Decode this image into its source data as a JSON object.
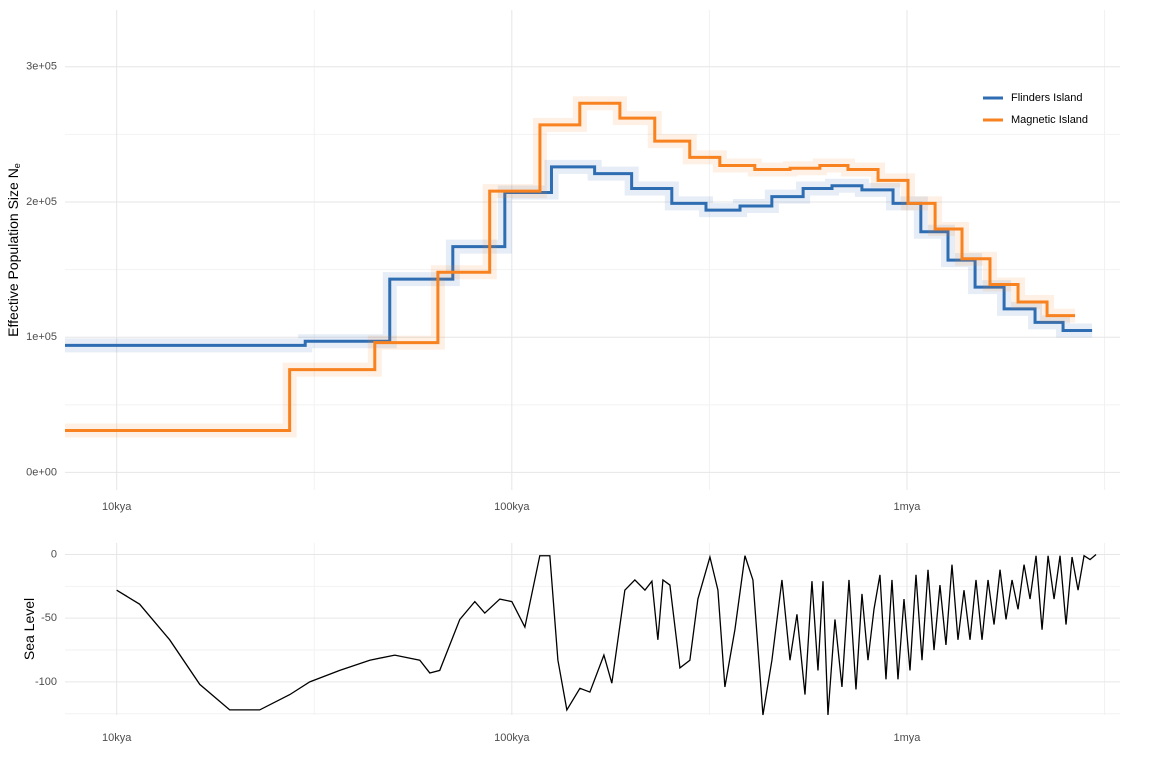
{
  "chart_data": [
    {
      "type": "step",
      "xscale": "log",
      "grid": true,
      "legend": "top-right",
      "y_label": "Effective Population Size N",
      "y_label_subscript": "e",
      "xlim": [
        7400,
        3460000
      ],
      "xticks": [
        {
          "value": 10000,
          "label": "10kya"
        },
        {
          "value": 100000,
          "label": "100kya"
        },
        {
          "value": 1000000,
          "label": "1mya"
        }
      ],
      "ylim": [
        -13000,
        342000
      ],
      "yticks": [
        {
          "value": 0,
          "label": "0e+00"
        },
        {
          "value": 100000,
          "label": "1e+05"
        },
        {
          "value": 200000,
          "label": "2e+05"
        },
        {
          "value": 300000,
          "label": "3e+05"
        }
      ],
      "series": [
        {
          "name": "Flinders Island",
          "color": "#2f6db3",
          "x": [
            7400,
            30000,
            49100,
            70900,
            96000,
            126000,
            162000,
            201000,
            254000,
            310000,
            378000,
            455000,
            546000,
            646000,
            769000,
            922000,
            1084000,
            1270000,
            1487000,
            1761000,
            2109000,
            2483000,
            2941000
          ],
          "values": [
            94000,
            97000,
            143000,
            167000,
            207000,
            226000,
            221000,
            210000,
            199000,
            194000,
            197000,
            204000,
            210000,
            212000,
            209000,
            199000,
            178000,
            157000,
            137000,
            121000,
            111000,
            105000,
            105000
          ]
        },
        {
          "name": "Magnetic Island",
          "color": "#f7821f",
          "x": [
            7400,
            27400,
            45000,
            65000,
            87900,
            117800,
            148600,
            187700,
            230000,
            282000,
            336000,
            412000,
            506000,
            602000,
            709000,
            845000,
            1006000,
            1178000,
            1378000,
            1622000,
            1910000,
            2262000,
            2663000
          ],
          "values": [
            31000,
            76000,
            96000,
            148000,
            208000,
            257000,
            273000,
            262000,
            245000,
            233000,
            227000,
            224000,
            225000,
            227000,
            224000,
            216000,
            199000,
            180000,
            158000,
            139000,
            126000,
            116000,
            116000
          ]
        }
      ]
    },
    {
      "type": "line",
      "xscale": "log",
      "grid": true,
      "y_label": "Sea Level",
      "xlim": [
        7400,
        3460000
      ],
      "xticks": [
        {
          "value": 10000,
          "label": "10kya"
        },
        {
          "value": 100000,
          "label": "100kya"
        },
        {
          "value": 1000000,
          "label": "1mya"
        }
      ],
      "ylim": [
        -126,
        9
      ],
      "yticks": [
        -100,
        -50,
        0
      ],
      "series": [
        {
          "color": "#000000",
          "x": [
            10000,
            11430,
            13620,
            16230,
            19320,
            23010,
            27420,
            30810,
            36690,
            43700,
            50560,
            58500,
            62000,
            65700,
            73850,
            80600,
            85420,
            93250,
            100000,
            107900,
            117700,
            124800,
            130800,
            137800,
            148700,
            157600,
            171000,
            179100,
            193200,
            204800,
            217200,
            226200,
            234200,
            241200,
            251200,
            266300,
            282200,
            295700,
            317200,
            332300,
            346100,
            366900,
            389000,
            407500,
            432000,
            455200,
            482600,
            505700,
            526700,
            551900,
            574800,
            595300,
            613000,
            631000,
            657300,
            684600,
            713200,
            742900,
            769300,
            796700,
            825100,
            854300,
            884800,
            916200,
            948900,
            982700,
            1017600,
            1053900,
            1091500,
            1130300,
            1170600,
            1211800,
            1255000,
            1299800,
            1346000,
            1394000,
            1443700,
            1495100,
            1548400,
            1603600,
            1660700,
            1719700,
            1780900,
            1844400,
            1909900,
            1978000,
            2048400,
            2121400,
            2196900,
            2275200,
            2356100,
            2439500,
            2526400,
            2616400,
            2709500,
            2806000,
            2906000,
            3009000
          ],
          "values": [
            -28,
            -39,
            -67,
            -102,
            -122,
            -122,
            -110,
            -100,
            -91,
            -83,
            -79,
            -83,
            -93,
            -91,
            -51,
            -37,
            -46,
            -35,
            -37,
            -57,
            -1,
            -1,
            -83,
            -122,
            -105,
            -108,
            -79,
            -101,
            -28,
            -20,
            -28,
            -21,
            -67,
            -20,
            -24,
            -89,
            -83,
            -35,
            -2,
            -28,
            -104,
            -59,
            -1,
            -20,
            -126,
            -83,
            -20,
            -83,
            -47,
            -110,
            -21,
            -91,
            -21,
            -126,
            -51,
            -104,
            -20,
            -106,
            -31,
            -83,
            -43,
            -16,
            -98,
            -20,
            -98,
            -35,
            -91,
            -16,
            -83,
            -12,
            -75,
            -24,
            -71,
            -8,
            -67,
            -28,
            -67,
            -20,
            -67,
            -20,
            -55,
            -12,
            -51,
            -20,
            -43,
            -8,
            -35,
            -1,
            -59,
            -1,
            -35,
            -1,
            -55,
            -2,
            -28,
            -1,
            -4,
            0
          ]
        }
      ]
    }
  ]
}
